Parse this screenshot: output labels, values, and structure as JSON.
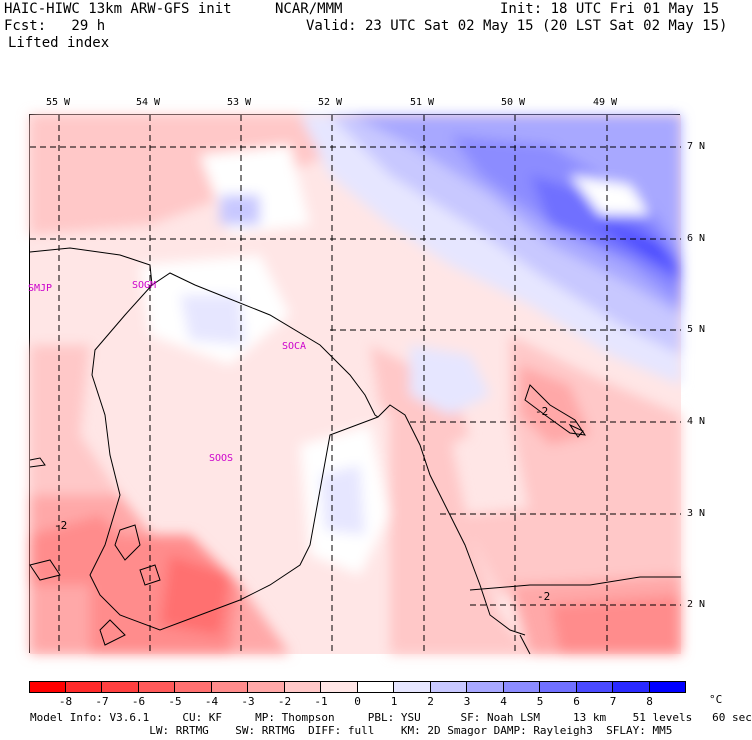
{
  "header": {
    "model": "HAIC-HIWC 13km ARW-GFS init",
    "center": "NCAR/MMM",
    "init": "Init: 18 UTC Fri 01 May 15",
    "fcst": "Fcst:   29 h",
    "valid": "Valid: 23 UTC Sat 02 May 15 (20 LST Sat 02 May 15)",
    "field": "Lifted index"
  },
  "map": {
    "lon_labels": [
      "55 W",
      "54 W",
      "53 W",
      "52 W",
      "51 W",
      "50 W",
      "49 W"
    ],
    "lat_labels": [
      "7 N",
      "6 N",
      "5 N",
      "4 N",
      "3 N",
      "2 N"
    ],
    "stations": [
      "SMJP",
      "SOGM",
      "SOCA",
      "SOOS"
    ],
    "contour_labels": [
      "-2",
      "-2",
      "-2"
    ]
  },
  "colorbar": {
    "labels": [
      "-8",
      "-7",
      "-6",
      "-5",
      "-4",
      "-3",
      "-2",
      "-1",
      "0",
      "1",
      "2",
      "3",
      "4",
      "5",
      "6",
      "7",
      "8"
    ],
    "unit": "°C",
    "colors": [
      "#ff0000",
      "#ff2a2a",
      "#ff4040",
      "#ff5a5a",
      "#ff7070",
      "#ff8c8c",
      "#ffa8a8",
      "#ffc8c8",
      "#ffe6e6",
      "#ffffff",
      "#e6e6ff",
      "#c8c8ff",
      "#a8a8ff",
      "#8c8cff",
      "#7070ff",
      "#4a4aff",
      "#2a2aff",
      "#0000ff"
    ]
  },
  "footer": {
    "line1": "Model Info: V3.6.1     CU: KF     MP: Thompson     PBL: YSU      SF: Noah LSM     13 km    51 levels   60 sec",
    "line2": "                  LW: RRTMG    SW: RRTMG  DIFF: full    KM: 2D Smagor DAMP: Rayleigh3  SFLAY: MM5"
  }
}
